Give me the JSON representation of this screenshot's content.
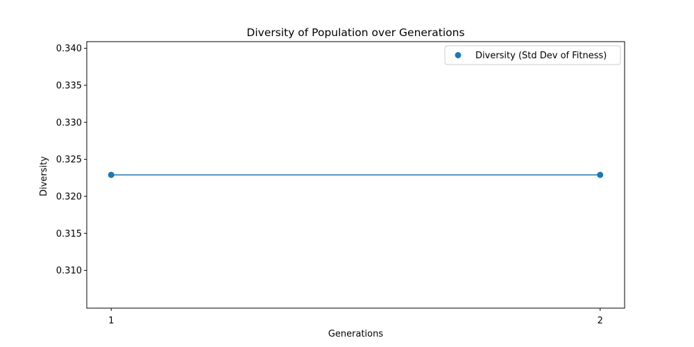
{
  "chart_data": {
    "type": "line",
    "title": "Diversity of Population over Generations",
    "xlabel": "Generations",
    "ylabel": "Diversity",
    "x": [
      1,
      2
    ],
    "xticks": [
      "1",
      "2"
    ],
    "xlim": [
      0.95,
      2.05
    ],
    "ylim": [
      0.3049,
      0.3409
    ],
    "yticks": [
      "0.310",
      "0.315",
      "0.320",
      "0.325",
      "0.330",
      "0.335",
      "0.340"
    ],
    "series": [
      {
        "name": "Diversity (Std Dev of Fitness)",
        "values": [
          0.3229,
          0.3229
        ],
        "color": "#1f77b4",
        "marker": "circle",
        "line": true
      }
    ],
    "legend": {
      "position": "top-right",
      "entries": [
        "Diversity (Std Dev of Fitness)"
      ]
    },
    "grid": false
  }
}
